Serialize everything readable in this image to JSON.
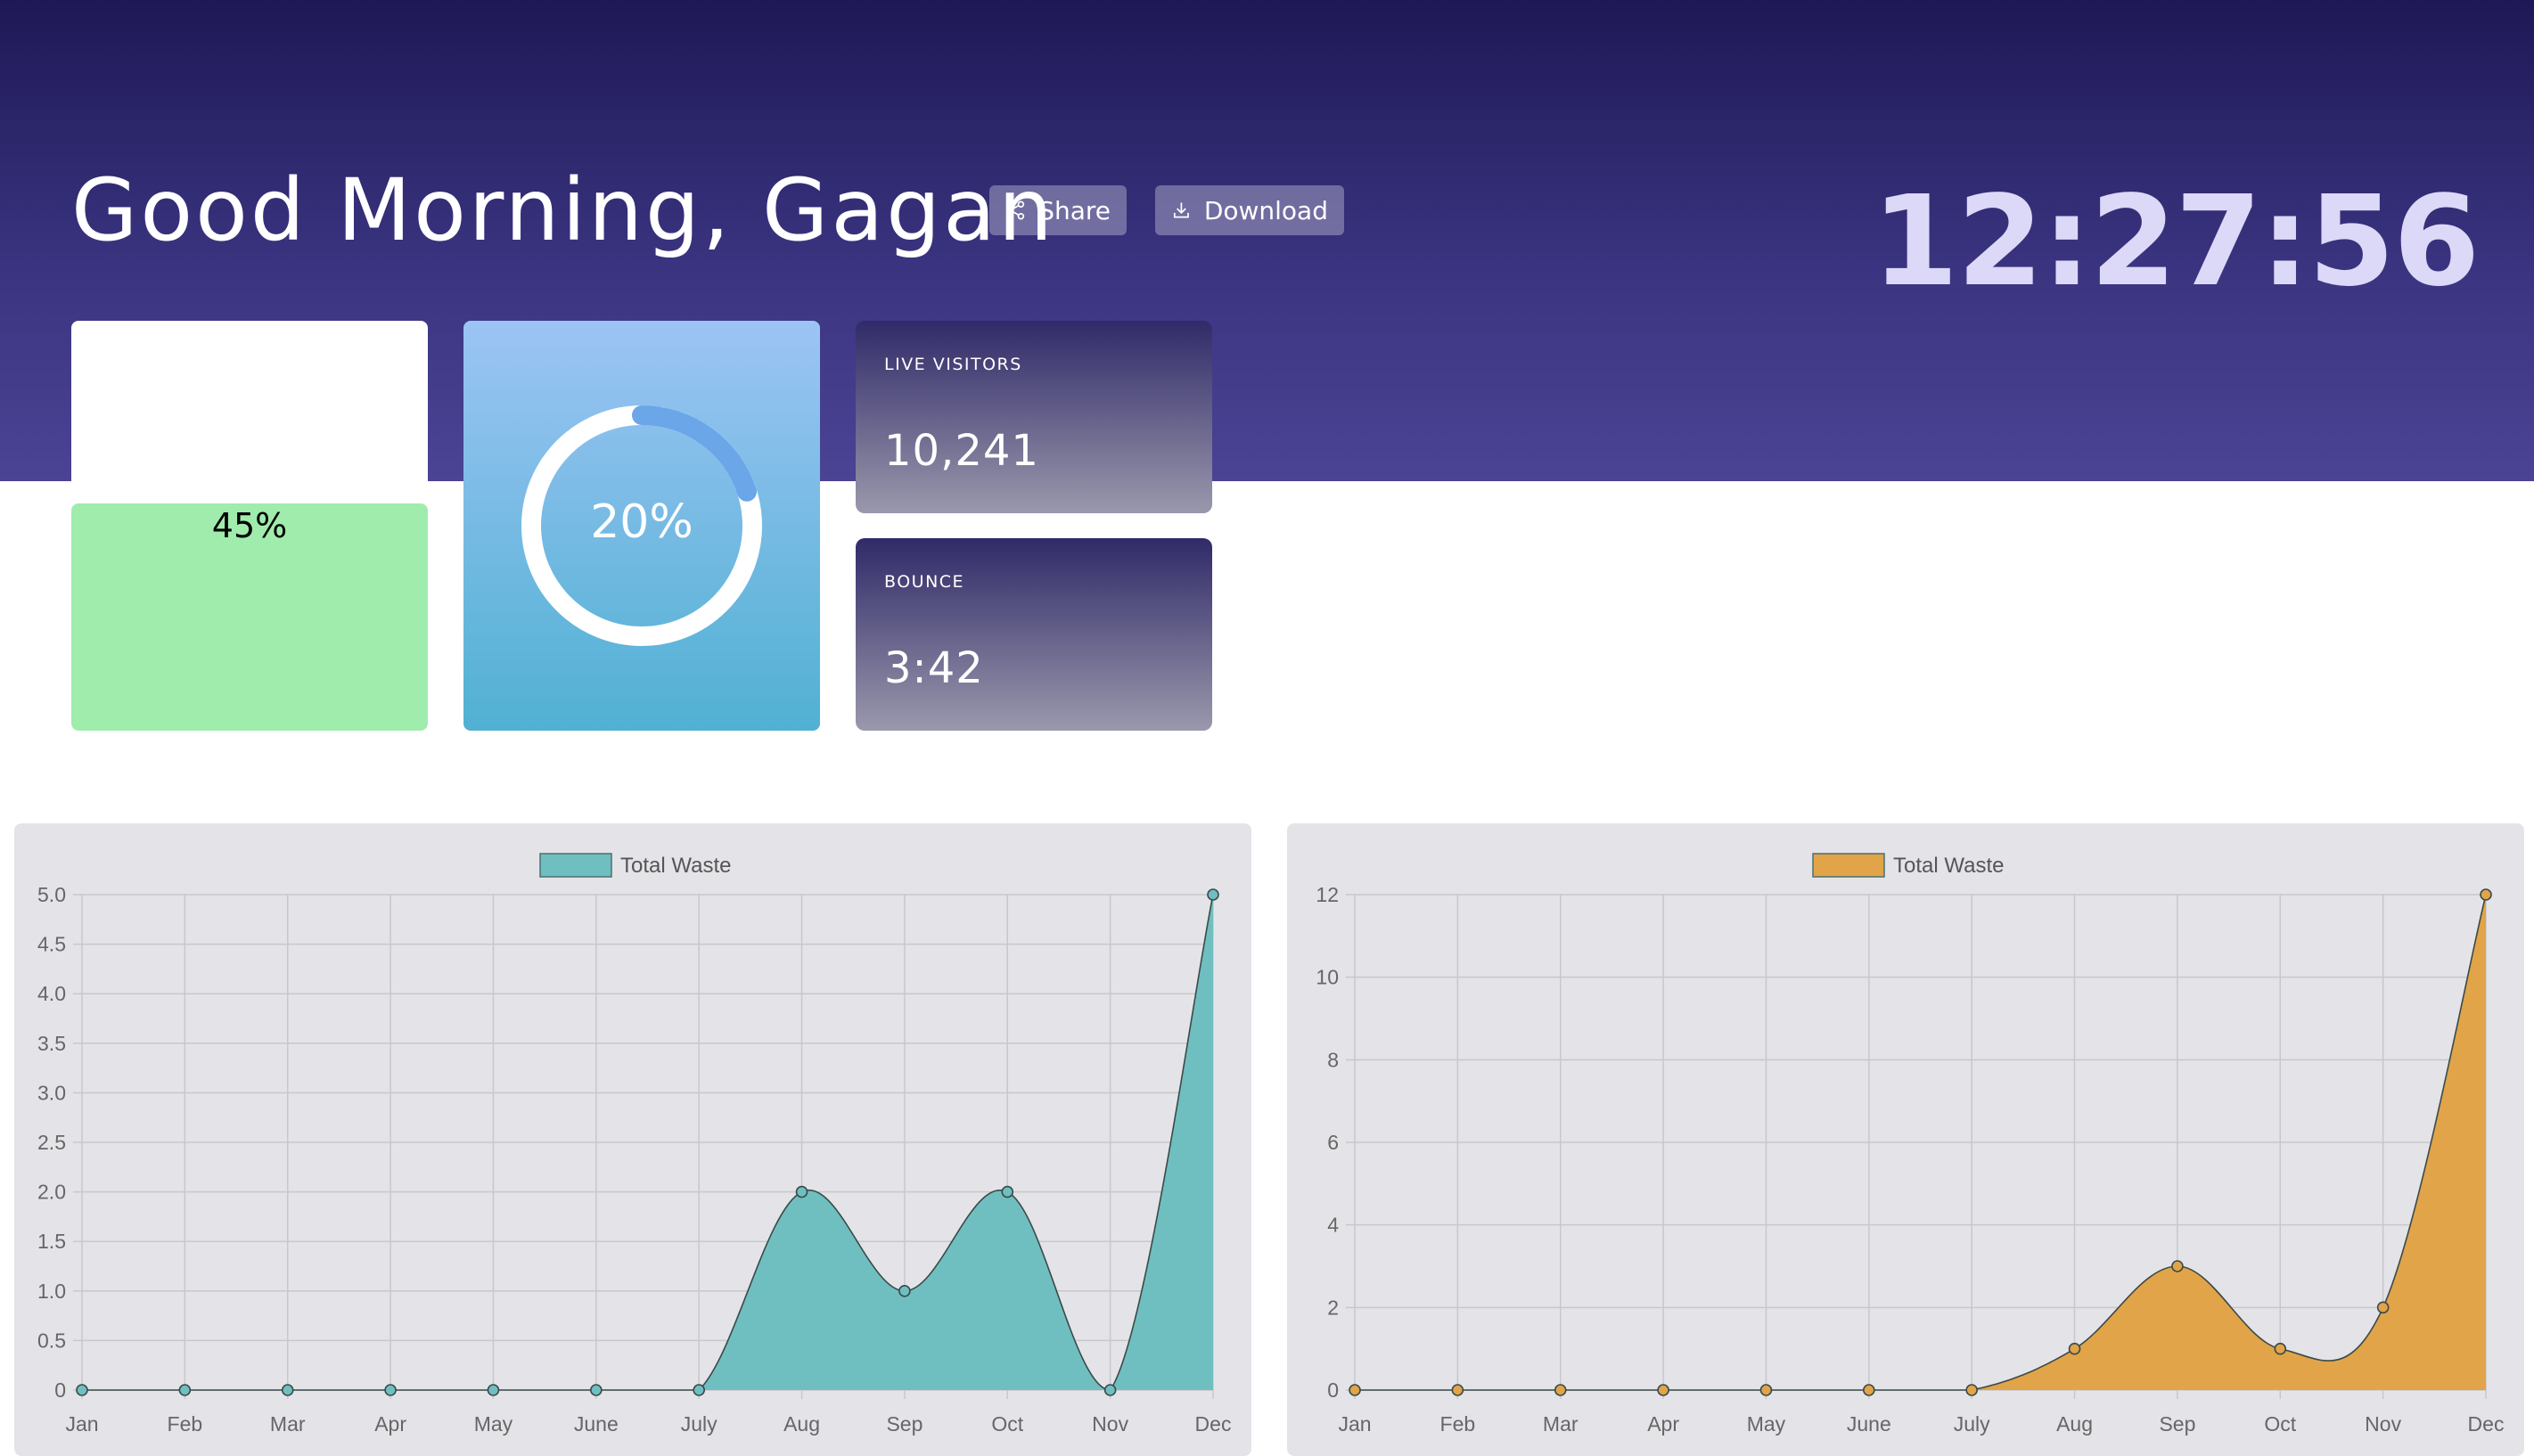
{
  "header": {
    "greeting": "Good Morning, Gagan",
    "share_label": "Share",
    "download_label": "Download",
    "clock": "12:27:56",
    "share_icon": "share-icon",
    "download_icon": "download-icon"
  },
  "cards": {
    "progress": {
      "value": 0.45,
      "label": "45%",
      "color": "#a0ecad"
    },
    "ring": {
      "value": 0.2,
      "label": "20%",
      "color": "#6aa6e8"
    },
    "live_visitors": {
      "label": "LIVE VISITORS",
      "value": "10,241"
    },
    "bounce": {
      "label": "BOUNCE",
      "value": "3:42"
    }
  },
  "chart_data": [
    {
      "type": "area",
      "categories": [
        "Jan",
        "Feb",
        "Mar",
        "Apr",
        "May",
        "June",
        "July",
        "Aug",
        "Sep",
        "Oct",
        "Nov",
        "Dec"
      ],
      "series": [
        {
          "name": "Total Waste",
          "values": [
            0,
            0,
            0,
            0,
            0,
            0,
            0,
            2,
            1,
            2,
            0,
            5
          ],
          "color": "#70bfc0"
        }
      ],
      "ylim": [
        0,
        5
      ],
      "yticks": [
        "0",
        "0.5",
        "1.0",
        "1.5",
        "2.0",
        "2.5",
        "3.0",
        "3.5",
        "4.0",
        "4.5",
        "5.0"
      ],
      "ytick_values": [
        0,
        0.5,
        1,
        1.5,
        2,
        2.5,
        3,
        3.5,
        4,
        4.5,
        5
      ],
      "grid": true,
      "legend": "top-center"
    },
    {
      "type": "area",
      "categories": [
        "Jan",
        "Feb",
        "Mar",
        "Apr",
        "May",
        "June",
        "July",
        "Aug",
        "Sep",
        "Oct",
        "Nov",
        "Dec"
      ],
      "series": [
        {
          "name": "Total Waste",
          "values": [
            0,
            0,
            0,
            0,
            0,
            0,
            0,
            1,
            3,
            1,
            2,
            12
          ],
          "color": "#e1a448"
        }
      ],
      "ylim": [
        0,
        12
      ],
      "yticks": [
        "0",
        "2",
        "4",
        "6",
        "8",
        "10",
        "12"
      ],
      "ytick_values": [
        0,
        2,
        4,
        6,
        8,
        10,
        12
      ],
      "grid": true,
      "legend": "top-center"
    }
  ]
}
